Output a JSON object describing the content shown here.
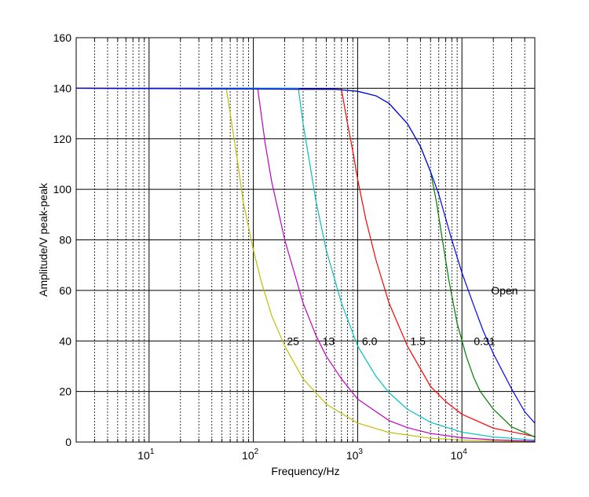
{
  "chart_data": {
    "type": "line",
    "xscale": "log",
    "xlim": [
      2,
      50000
    ],
    "ylim": [
      0,
      160
    ],
    "grid": true,
    "xlabel": "Frequency/Hz",
    "ylabel": "Amplitude/V peak-peak",
    "x_major_ticks": [
      {
        "value": 10,
        "base": "10",
        "exp": "1"
      },
      {
        "value": 100,
        "base": "10",
        "exp": "2"
      },
      {
        "value": 1000,
        "base": "10",
        "exp": "3"
      },
      {
        "value": 10000,
        "base": "10",
        "exp": "4"
      }
    ],
    "y_ticks": [
      0,
      20,
      40,
      60,
      80,
      100,
      120,
      140,
      160
    ],
    "series": [
      {
        "name": "25",
        "color": "#bfbf00",
        "x": [
          2,
          55,
          70,
          80,
          100,
          120,
          150,
          200,
          300,
          500,
          1000,
          2000,
          5000,
          10000,
          20000,
          50000
        ],
        "y": [
          140,
          140,
          112,
          95,
          76,
          63,
          50,
          38,
          25,
          15,
          7.5,
          3.8,
          1.5,
          0.8,
          0.4,
          0.15
        ]
      },
      {
        "name": "13",
        "color": "#bf00bf",
        "x": [
          2,
          110,
          130,
          150,
          200,
          300,
          400,
          500,
          700,
          1000,
          2000,
          3000,
          5000,
          10000,
          20000,
          50000
        ],
        "y": [
          140,
          140,
          118,
          103,
          80,
          55,
          42,
          34,
          25,
          17,
          8.5,
          5.7,
          3.4,
          1.7,
          0.9,
          0.35
        ]
      },
      {
        "name": "6.0",
        "color": "#00bfbf",
        "x": [
          2,
          270,
          300,
          400,
          500,
          700,
          1000,
          1500,
          2000,
          3000,
          5000,
          10000,
          20000,
          50000
        ],
        "y": [
          140,
          140,
          126,
          95,
          76,
          55,
          38,
          26,
          19.5,
          13,
          7.8,
          3.9,
          2,
          0.8
        ]
      },
      {
        "name": "1.5",
        "color": "#ff0000",
        "x": [
          2,
          700,
          800,
          900,
          1000,
          1200,
          1500,
          2000,
          3000,
          5000,
          7000,
          10000,
          20000,
          50000
        ],
        "y": [
          140,
          139.5,
          126,
          115,
          104,
          88,
          72,
          55,
          38,
          22,
          16,
          11,
          5.5,
          2.2
        ]
      },
      {
        "name": "0.31",
        "color": "#007f00",
        "x": [
          2,
          600,
          1000,
          1500,
          2000,
          3000,
          4000,
          5000,
          5700,
          6500,
          7500,
          9000,
          11000,
          13000,
          15000,
          20000,
          30000,
          50000
        ],
        "y": [
          140,
          139.6,
          138.8,
          137,
          134,
          126,
          117,
          107,
          95,
          80,
          64,
          47,
          34,
          25.5,
          20,
          13,
          6,
          2
        ]
      },
      {
        "name": "Open",
        "color": "#0000ff",
        "x": [
          2,
          600,
          1000,
          1500,
          2000,
          3000,
          4000,
          5000,
          6000,
          8000,
          10000,
          13000,
          16000,
          20000,
          30000,
          40000,
          50000
        ],
        "y": [
          140,
          139.6,
          138.8,
          137,
          134,
          126,
          117,
          107,
          98,
          80,
          67,
          54,
          44,
          35,
          21,
          12,
          7.5
        ]
      }
    ],
    "annotations": [
      {
        "text": "25",
        "x": 210,
        "y": 40,
        "color": "#000000"
      },
      {
        "text": "13",
        "x": 460,
        "y": 40,
        "color": "#000000"
      },
      {
        "text": "6.0",
        "x": 1100,
        "y": 40,
        "color": "#000000"
      },
      {
        "text": "1.5",
        "x": 3200,
        "y": 40,
        "color": "#000000"
      },
      {
        "text": "0.31",
        "x": 13000,
        "y": 40,
        "color": "#000000"
      },
      {
        "text": "Open",
        "x": 19000,
        "y": 60,
        "color": "#000000"
      }
    ]
  }
}
